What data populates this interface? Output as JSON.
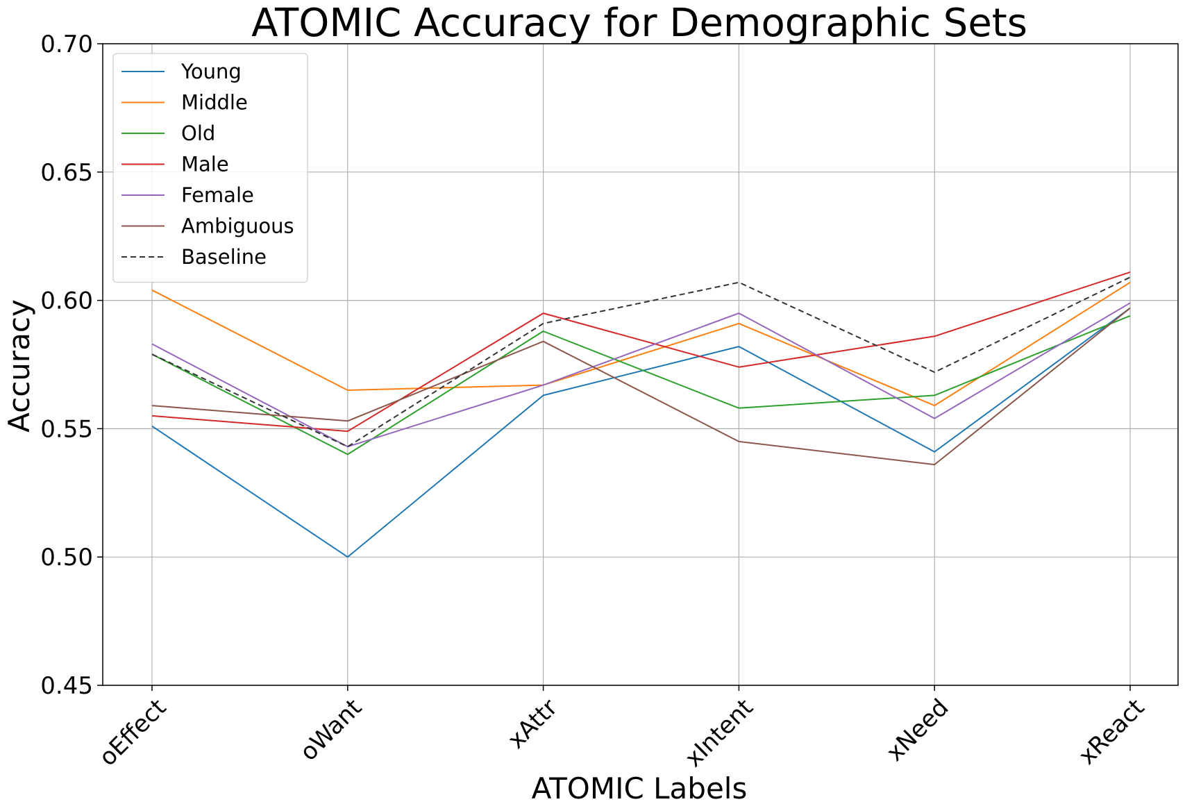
{
  "chart_data": {
    "type": "line",
    "title": "ATOMIC Accuracy for Demographic Sets",
    "xlabel": "ATOMIC Labels",
    "ylabel": "Accuracy",
    "categories": [
      "oEffect",
      "oWant",
      "xAttr",
      "xIntent",
      "xNeed",
      "xReact"
    ],
    "ylim": [
      0.45,
      0.7
    ],
    "yticks": [
      "0.45",
      "0.50",
      "0.55",
      "0.60",
      "0.65",
      "0.70"
    ],
    "grid": true,
    "legend_position": "top-left",
    "series": [
      {
        "name": "Young",
        "color": "#1f77b4",
        "dash": "solid",
        "values": [
          0.551,
          0.5,
          0.563,
          0.582,
          0.541,
          0.597
        ]
      },
      {
        "name": "Middle",
        "color": "#ff7f0e",
        "dash": "solid",
        "values": [
          0.604,
          0.565,
          0.567,
          0.591,
          0.559,
          0.607
        ]
      },
      {
        "name": "Old",
        "color": "#2ca02c",
        "dash": "solid",
        "values": [
          0.579,
          0.54,
          0.588,
          0.558,
          0.563,
          0.594
        ]
      },
      {
        "name": "Male",
        "color": "#d62728",
        "dash": "solid",
        "values": [
          0.555,
          0.549,
          0.595,
          0.574,
          0.586,
          0.611
        ]
      },
      {
        "name": "Female",
        "color": "#9467bd",
        "dash": "solid",
        "values": [
          0.583,
          0.543,
          0.567,
          0.595,
          0.554,
          0.599
        ]
      },
      {
        "name": "Ambiguous",
        "color": "#8c564b",
        "dash": "solid",
        "values": [
          0.559,
          0.553,
          0.584,
          0.545,
          0.536,
          0.597
        ]
      },
      {
        "name": "Baseline",
        "color": "#333333",
        "dash": "dashed",
        "values": [
          0.579,
          0.543,
          0.591,
          0.607,
          0.572,
          0.609
        ]
      }
    ]
  }
}
